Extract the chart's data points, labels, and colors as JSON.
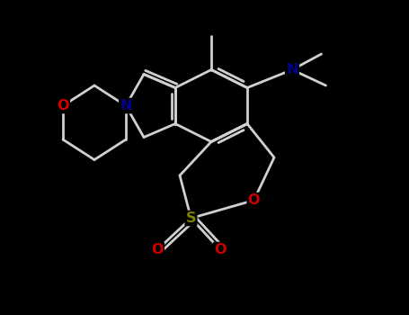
{
  "background_color": "#000000",
  "N_color": "#00008B",
  "O_color": "#CC0000",
  "S_color": "#808000",
  "bond_color": "#d0d0d0",
  "fig_width": 4.55,
  "fig_height": 3.5,
  "dpi": 100,
  "xlim": [
    0,
    9
  ],
  "ylim": [
    0,
    7
  ]
}
